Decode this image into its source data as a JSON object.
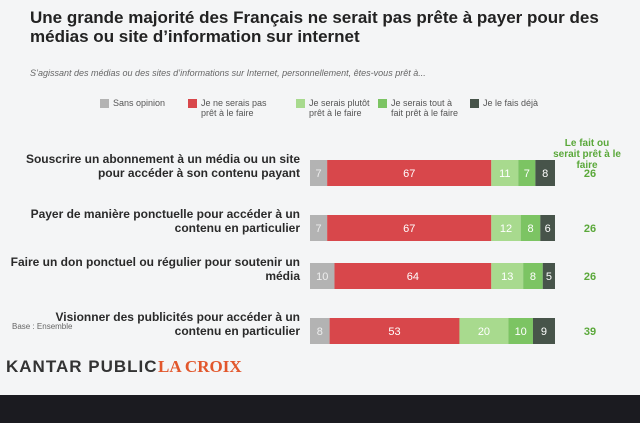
{
  "chart_data": {
    "type": "stacked-bar-horizontal",
    "title": "Une grande majorité des Français ne serait pas prête à payer pour des médias ou site d’information sur internet",
    "subtitle": "S’agissant des médias ou des sites d’informations sur Internet, personnellement, êtes-vous prêt à...",
    "categories": [
      "Souscrire un abonnement à un média ou un site pour accéder à son contenu payant",
      "Payer de manière ponctuelle pour accéder à un contenu en particulier",
      "Faire un don ponctuel ou régulier pour soutenir un média",
      "Visionner des publicités pour accéder à un contenu en particulier"
    ],
    "series": [
      {
        "name": "Sans opinion",
        "color": "#b3b3b3",
        "values": [
          7,
          7,
          10,
          8
        ]
      },
      {
        "name": "Je ne serais pas prêt à le faire",
        "color": "#d8474b",
        "values": [
          67,
          67,
          64,
          53
        ]
      },
      {
        "name": "Je serais plutôt prêt à le faire",
        "color": "#a8da8e",
        "values": [
          11,
          12,
          13,
          20
        ]
      },
      {
        "name": "Je serais tout à fait prêt à le faire",
        "color": "#7cc463",
        "values": [
          7,
          8,
          8,
          10
        ]
      },
      {
        "name": "Je le fais déjà",
        "color": "#47544a",
        "values": [
          8,
          6,
          5,
          9
        ]
      }
    ],
    "totals": {
      "title": "Le fait ou serait prêt à le faire",
      "color": "#5aa83a",
      "values": [
        26,
        26,
        26,
        39
      ]
    },
    "footnote": "Base : Ensemble",
    "logos": [
      "KANTAR PUBLIC",
      "LA CROIX"
    ]
  }
}
